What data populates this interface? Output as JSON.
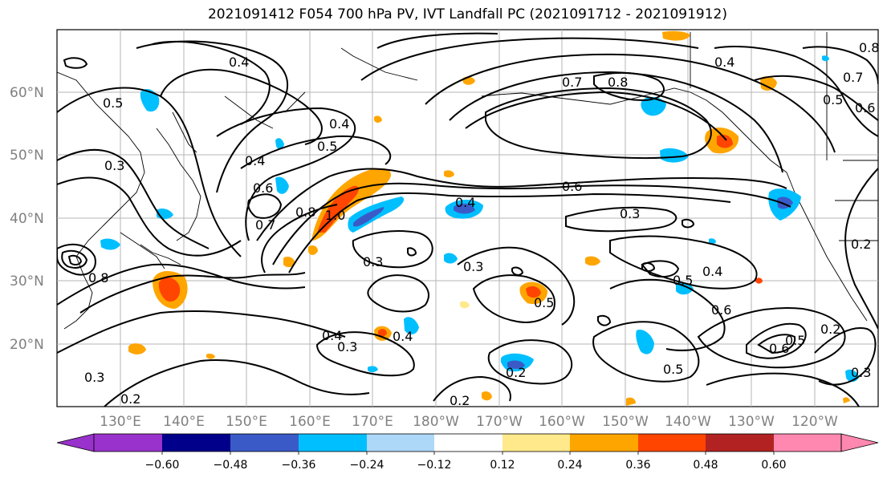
{
  "title": "2021091412 F054 700 hPa PV, IVT Landfall PC (2021091712 - 2021091912)",
  "map": {
    "lat_labels": [
      "60°N",
      "50°N",
      "40°N",
      "30°N",
      "20°N"
    ],
    "lon_labels": [
      "130°E",
      "140°E",
      "150°E",
      "160°E",
      "170°E",
      "180°W",
      "170°W",
      "160°W",
      "150°W",
      "140°W",
      "130°W",
      "120°W"
    ],
    "contour_labels": [
      "0.4",
      "0.7",
      "0.8",
      "0.4",
      "0.5",
      "0.7",
      "0.6",
      "0.8",
      "0.4",
      "0.5",
      "0.3",
      "0.4",
      "0.6",
      "0.7",
      "0.8",
      "1.0",
      "0.4",
      "0.6",
      "0.3",
      "0.3",
      "0.3",
      "0.4",
      "0.5",
      "0.6",
      "0.4",
      "0.3",
      "0.4",
      "0.2",
      "0.5",
      "0.5",
      "0.6",
      "0.5",
      "0.2",
      "0.3",
      "0.2",
      "0.3",
      "0.5",
      "0.2",
      "0.8",
      "0.2"
    ]
  },
  "colorbar": {
    "tick_labels": [
      "−0.60",
      "−0.48",
      "−0.36",
      "−0.24",
      "−0.12",
      "0.12",
      "0.24",
      "0.36",
      "0.48",
      "0.60"
    ],
    "colors": [
      "#9932cc",
      "#00008b",
      "#3a5bc7",
      "#00bfff",
      "#add8f7",
      "#ffffff",
      "#ffe98a",
      "#ffa500",
      "#ff4500",
      "#b22222",
      "#ff88b0"
    ]
  }
}
